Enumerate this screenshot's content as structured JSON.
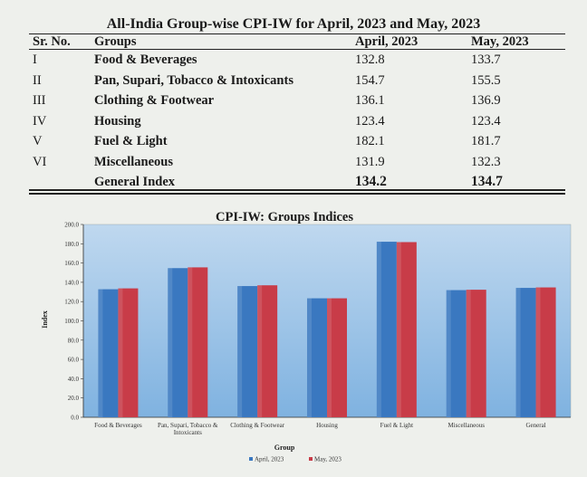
{
  "table": {
    "title": "All-India Group-wise CPI-IW for April, 2023 and May, 2023",
    "headers": [
      "Sr. No.",
      "Groups",
      "April, 2023",
      "May, 2023"
    ],
    "rows": [
      {
        "sr": "I",
        "group": "Food & Beverages",
        "april": "132.8",
        "may": "133.7"
      },
      {
        "sr": "II",
        "group": "Pan, Supari, Tobacco & Intoxicants",
        "april": "154.7",
        "may": "155.5"
      },
      {
        "sr": "III",
        "group": "Clothing & Footwear",
        "april": "136.1",
        "may": "136.9"
      },
      {
        "sr": "IV",
        "group": "Housing",
        "april": "123.4",
        "may": "123.4"
      },
      {
        "sr": "V",
        "group": "Fuel & Light",
        "april": "182.1",
        "may": "181.7"
      },
      {
        "sr": "VI",
        "group": "Miscellaneous",
        "april": "131.9",
        "may": "132.3"
      }
    ],
    "total": {
      "sr": "",
      "group": "General Index",
      "april": "134.2",
      "may": "134.7"
    }
  },
  "chart_data": {
    "type": "bar",
    "title": "CPI-IW: Groups Indices",
    "xlabel": "Group",
    "ylabel": "Index",
    "categories": [
      "Food & Beverages",
      "Pan, Supari, Tobacco & Intoxicants",
      "Clothing & Footwear",
      "Housing",
      "Fuel & Light",
      "Miscellaneous",
      "General"
    ],
    "category_lines": [
      [
        "Food & Beverages"
      ],
      [
        "Pan, Supari, Tobacco &",
        "Intoxicants"
      ],
      [
        "Clothing & Footwear"
      ],
      [
        "Housing"
      ],
      [
        "Fuel & Light"
      ],
      [
        "Miscellaneous"
      ],
      [
        "General"
      ]
    ],
    "series": [
      {
        "name": "April, 2023",
        "values": [
          132.8,
          154.7,
          136.1,
          123.4,
          182.1,
          131.9,
          134.2
        ],
        "color": "#3a78c0"
      },
      {
        "name": "May, 2023",
        "values": [
          133.7,
          155.5,
          136.9,
          123.4,
          181.7,
          132.3,
          134.7
        ],
        "color": "#c83c48"
      }
    ],
    "ylim": [
      0,
      200
    ],
    "yticks": [
      "0.0",
      "20.0",
      "40.0",
      "60.0",
      "80.0",
      "100.0",
      "120.0",
      "140.0",
      "160.0",
      "180.0",
      "200.0"
    ],
    "grid": false,
    "legend": "bottom",
    "plot_background": [
      "#bfd8ef",
      "#7fb2e0"
    ]
  }
}
